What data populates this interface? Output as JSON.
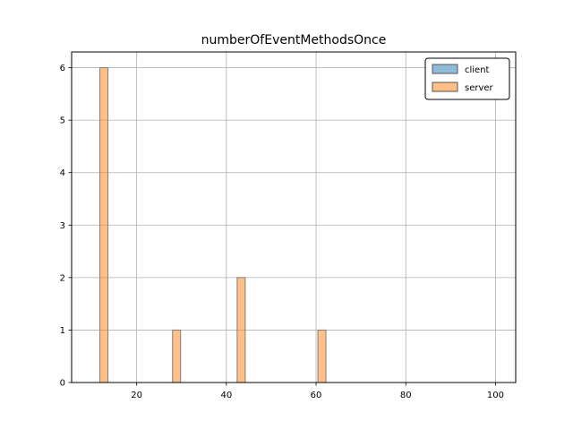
{
  "chart_data": {
    "type": "bar",
    "title": "numberOfEventMethodsOnce",
    "xlabel": "",
    "ylabel": "",
    "xlim": [
      5.5,
      104.5
    ],
    "ylim": [
      0,
      6.3
    ],
    "xticks": [
      20,
      40,
      60,
      80,
      100
    ],
    "yticks": [
      0,
      1,
      2,
      3,
      4,
      5,
      6
    ],
    "bin_edges": [
      10,
      11.8,
      13.6,
      15.4,
      17.2,
      19,
      20.8,
      22.6,
      24.4,
      26.2,
      28,
      29.8,
      31.6,
      33.4,
      35.2,
      37,
      38.8,
      40.6,
      42.4,
      44.2,
      46,
      47.8,
      49.6,
      51.4,
      53.2,
      55,
      56.8,
      58.6,
      60.4,
      62.2,
      64,
      65.8,
      67.6,
      69.4
    ],
    "series": [
      {
        "name": "client",
        "color": "#1f77b4",
        "values": [
          0,
          0,
          0,
          0,
          0,
          0,
          0,
          0,
          0,
          0,
          0,
          0,
          0,
          0,
          0,
          0,
          0,
          0,
          0,
          0,
          0,
          0,
          0,
          0,
          0,
          0,
          0,
          0,
          0,
          0,
          0,
          0,
          0
        ]
      },
      {
        "name": "server",
        "color": "#ff7f0e",
        "values": [
          0,
          6,
          0,
          0,
          0,
          0,
          0,
          0,
          0,
          0,
          1,
          0,
          0,
          0,
          0,
          0,
          0,
          0,
          2,
          0,
          0,
          0,
          0,
          0,
          0,
          0,
          0,
          0,
          1,
          0,
          0,
          0,
          0
        ]
      }
    ],
    "grid": true,
    "legend_position": "top-right"
  }
}
